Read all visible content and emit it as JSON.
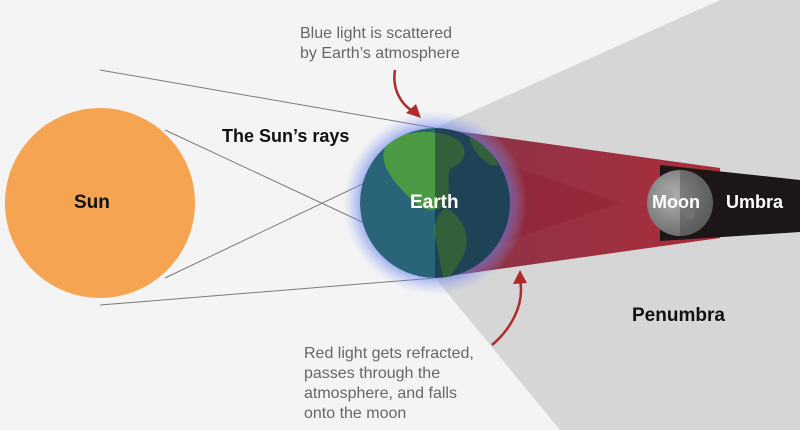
{
  "labels": {
    "sun": "Sun",
    "suns_rays": "The Sun’s rays",
    "earth": "Earth",
    "moon": "Moon",
    "umbra": "Umbra",
    "penumbra": "Penumbra"
  },
  "annotations": {
    "blue_light": [
      "Blue light is scattered",
      "by Earth’s atmosphere"
    ],
    "red_light": [
      "Red light gets refracted,",
      "passes through the",
      "atmosphere, and falls",
      "onto the moon"
    ]
  },
  "colors": {
    "background": "#f4f4f4",
    "sun": "#f5a552",
    "earth_ocean": "#2a6478",
    "earth_land": "#4d9a45",
    "atmosphere_glow": "#4a66d8",
    "red_light": "#8f1a2c",
    "umbra": "#1c1617",
    "penumbra": "#d5d5d5",
    "moon": "#8a8a8a",
    "arrow": "#b02a2a",
    "text": "#111111",
    "annotation_text": "#666666"
  }
}
